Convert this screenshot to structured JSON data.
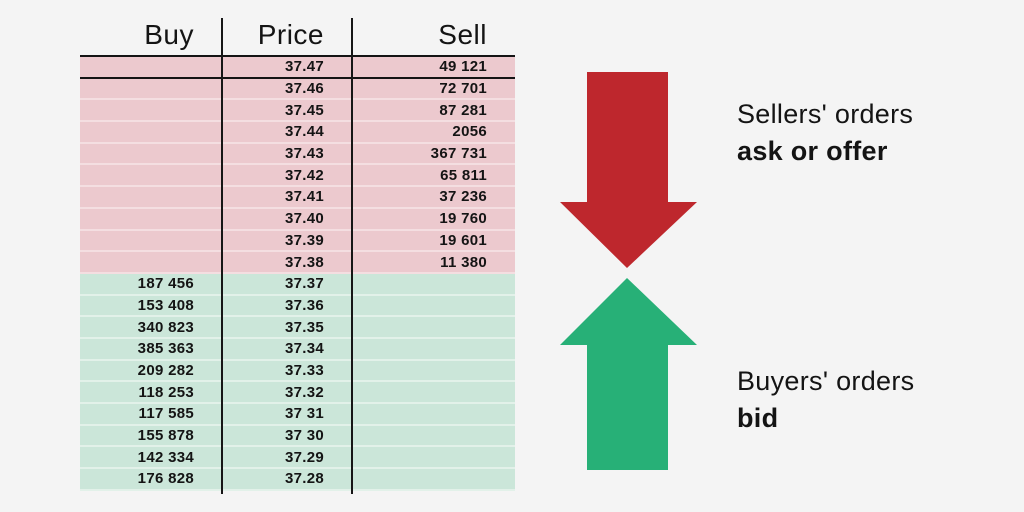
{
  "colors": {
    "background": "#F4F4F4",
    "ask_row": "#ECC9CE",
    "bid_row": "#CBE6D9",
    "arrow_red": "#BE272D",
    "arrow_green": "#27B077",
    "text": "#141414"
  },
  "table": {
    "headers": {
      "buy": "Buy",
      "price": "Price",
      "sell": "Sell"
    },
    "ask_rows": [
      {
        "buy": "",
        "price": "37.47",
        "sell": "49 121"
      },
      {
        "buy": "",
        "price": "37.46",
        "sell": "72 701"
      },
      {
        "buy": "",
        "price": "37.45",
        "sell": "87 281"
      },
      {
        "buy": "",
        "price": "37.44",
        "sell": "2056"
      },
      {
        "buy": "",
        "price": "37.43",
        "sell": "367 731"
      },
      {
        "buy": "",
        "price": "37.42",
        "sell": "65 811"
      },
      {
        "buy": "",
        "price": "37.41",
        "sell": "37 236"
      },
      {
        "buy": "",
        "price": "37.40",
        "sell": "19 760"
      },
      {
        "buy": "",
        "price": "37.39",
        "sell": "19 601"
      },
      {
        "buy": "",
        "price": "37.38",
        "sell": "11 380"
      }
    ],
    "bid_rows": [
      {
        "buy": "187 456",
        "price": "37.37",
        "sell": ""
      },
      {
        "buy": "153 408",
        "price": "37.36",
        "sell": ""
      },
      {
        "buy": "340 823",
        "price": "37.35",
        "sell": ""
      },
      {
        "buy": "385 363",
        "price": "37.34",
        "sell": ""
      },
      {
        "buy": "209 282",
        "price": "37.33",
        "sell": ""
      },
      {
        "buy": "118 253",
        "price": "37.32",
        "sell": ""
      },
      {
        "buy": "117 585",
        "price": "37 31",
        "sell": ""
      },
      {
        "buy": "155 878",
        "price": "37 30",
        "sell": ""
      },
      {
        "buy": "142 334",
        "price": "37.29",
        "sell": ""
      },
      {
        "buy": "176 828",
        "price": "37.28",
        "sell": ""
      }
    ]
  },
  "annotations": {
    "sellers": {
      "line1": "Sellers' orders",
      "line2": "ask or offer"
    },
    "buyers": {
      "line1": "Buyers' orders",
      "line2": "bid"
    }
  }
}
